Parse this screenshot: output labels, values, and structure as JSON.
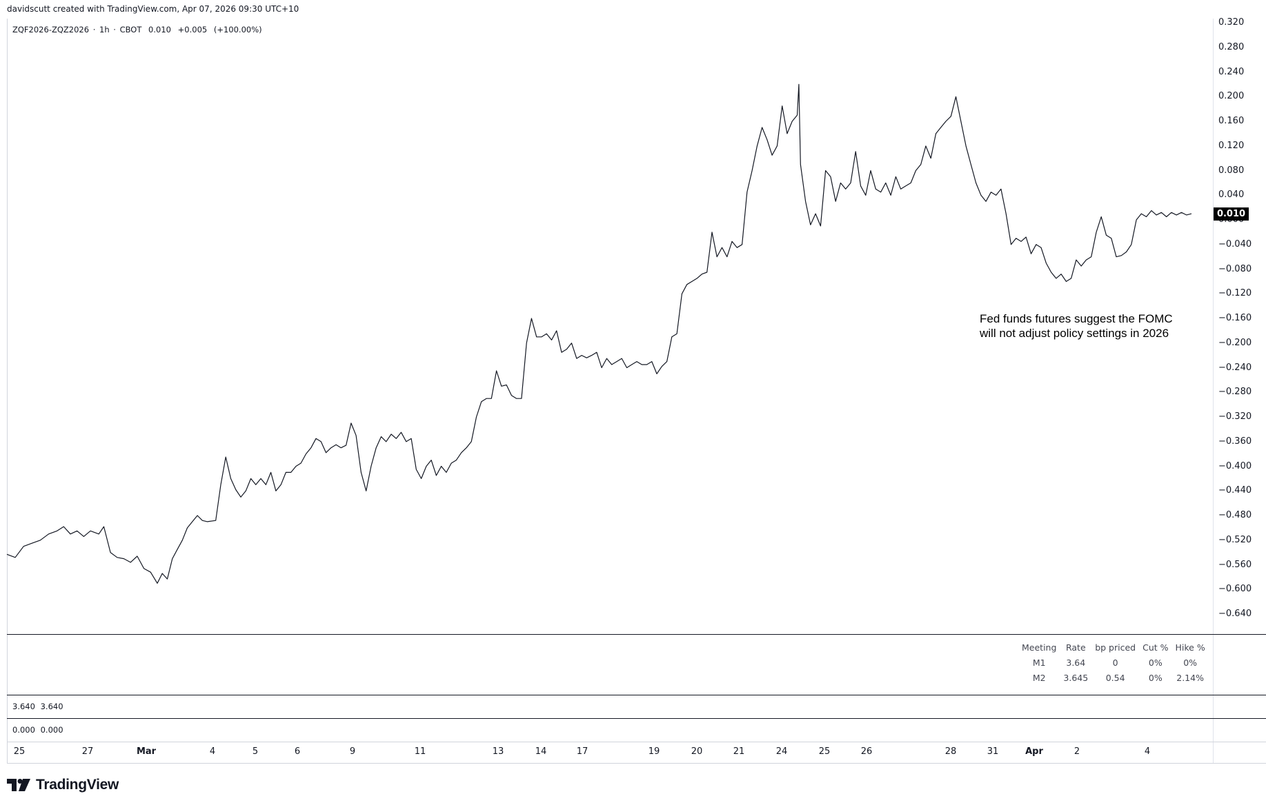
{
  "header": {
    "created_by": "davidscutt created with TradingView.com, Apr 07, 2026 09:30 UTC+10"
  },
  "legend": {
    "symbol": "ZQF2026-ZQZ2026",
    "interval": "1h",
    "exchange": "CBOT",
    "last": "0.010",
    "change": "+0.005",
    "change_pct": "(+100.00%)"
  },
  "price_tag": "0.010",
  "annotation": {
    "line1": "Fed funds futures suggest the FOMC",
    "line2": "will not adjust policy settings in 2026"
  },
  "fomc_table": {
    "headers": [
      "Meeting",
      "Rate",
      "bp priced",
      "Cut %",
      "Hike %"
    ],
    "rows": [
      [
        "M1",
        "3.64",
        "0",
        "0%",
        "0%"
      ],
      [
        "M2",
        "3.645",
        "0.54",
        "0%",
        "2.14%"
      ]
    ]
  },
  "panes": {
    "pane2": {
      "v1": "3.640",
      "v2": "3.640"
    },
    "pane3": {
      "v1": "0.000",
      "v2": "0.000"
    }
  },
  "brand": {
    "name": "TradingView"
  },
  "colors": {
    "line": "#131722",
    "price_tag_bg": "#000000"
  },
  "chart_data": {
    "type": "line",
    "title": "",
    "xlabel": "",
    "ylabel": "",
    "ylim": [
      -0.66,
      0.33
    ],
    "y_ticks": [
      "0.320",
      "0.280",
      "0.240",
      "0.200",
      "0.160",
      "0.120",
      "0.080",
      "0.040",
      "0.000",
      "−0.040",
      "−0.080",
      "−0.120",
      "−0.160",
      "−0.200",
      "−0.240",
      "−0.280",
      "−0.320",
      "−0.360",
      "−0.400",
      "−0.440",
      "−0.480",
      "−0.520",
      "−0.560",
      "−0.600",
      "−0.640"
    ],
    "x_ticks": [
      "25",
      "27",
      "Mar",
      "4",
      "5",
      "6",
      "9",
      "11",
      "13",
      "14",
      "17",
      "19",
      "20",
      "21",
      "24",
      "25",
      "26",
      "28",
      "31",
      "Apr",
      "2",
      "4"
    ],
    "x_ticks_bold": [
      "Mar",
      "Apr"
    ],
    "series": [
      {
        "points": [
          [
            0,
            -0.543
          ],
          [
            5,
            -0.548
          ],
          [
            10,
            -0.53
          ],
          [
            15,
            -0.525
          ],
          [
            20,
            -0.52
          ],
          [
            25,
            -0.51
          ],
          [
            30,
            -0.505
          ],
          [
            34,
            -0.498
          ],
          [
            38,
            -0.51
          ],
          [
            42,
            -0.505
          ],
          [
            46,
            -0.514
          ],
          [
            50,
            -0.505
          ],
          [
            55,
            -0.51
          ],
          [
            58,
            -0.498
          ],
          [
            62,
            -0.54
          ],
          [
            66,
            -0.548
          ],
          [
            70,
            -0.55
          ],
          [
            74,
            -0.556
          ],
          [
            78,
            -0.546
          ],
          [
            82,
            -0.566
          ],
          [
            86,
            -0.572
          ],
          [
            90,
            -0.59
          ],
          [
            93,
            -0.574
          ],
          [
            96,
            -0.583
          ],
          [
            99,
            -0.55
          ],
          [
            102,
            -0.535
          ],
          [
            105,
            -0.52
          ],
          [
            108,
            -0.5
          ],
          [
            111,
            -0.49
          ],
          [
            114,
            -0.48
          ],
          [
            117,
            -0.488
          ],
          [
            120,
            -0.49
          ],
          [
            125,
            -0.488
          ],
          [
            128,
            -0.43
          ],
          [
            131,
            -0.385
          ],
          [
            134,
            -0.42
          ],
          [
            137,
            -0.438
          ],
          [
            140,
            -0.45
          ],
          [
            143,
            -0.44
          ],
          [
            146,
            -0.42
          ],
          [
            149,
            -0.43
          ],
          [
            152,
            -0.42
          ],
          [
            155,
            -0.43
          ],
          [
            158,
            -0.41
          ],
          [
            161,
            -0.44
          ],
          [
            164,
            -0.43
          ],
          [
            167,
            -0.41
          ],
          [
            170,
            -0.41
          ],
          [
            173,
            -0.4
          ],
          [
            176,
            -0.395
          ],
          [
            179,
            -0.38
          ],
          [
            182,
            -0.37
          ],
          [
            185,
            -0.355
          ],
          [
            188,
            -0.36
          ],
          [
            191,
            -0.378
          ],
          [
            194,
            -0.37
          ],
          [
            197,
            -0.365
          ],
          [
            200,
            -0.37
          ],
          [
            203,
            -0.366
          ],
          [
            206,
            -0.33
          ],
          [
            209,
            -0.35
          ],
          [
            212,
            -0.41
          ],
          [
            215,
            -0.44
          ],
          [
            218,
            -0.4
          ],
          [
            221,
            -0.37
          ],
          [
            224,
            -0.352
          ],
          [
            227,
            -0.36
          ],
          [
            230,
            -0.348
          ],
          [
            233,
            -0.355
          ],
          [
            236,
            -0.345
          ],
          [
            239,
            -0.36
          ],
          [
            242,
            -0.355
          ],
          [
            245,
            -0.405
          ],
          [
            248,
            -0.42
          ],
          [
            251,
            -0.4
          ],
          [
            254,
            -0.39
          ],
          [
            257,
            -0.415
          ],
          [
            260,
            -0.4
          ],
          [
            263,
            -0.41
          ],
          [
            266,
            -0.395
          ],
          [
            269,
            -0.39
          ],
          [
            272,
            -0.378
          ],
          [
            275,
            -0.37
          ],
          [
            278,
            -0.36
          ],
          [
            281,
            -0.32
          ],
          [
            284,
            -0.295
          ],
          [
            287,
            -0.29
          ],
          [
            290,
            -0.29
          ],
          [
            293,
            -0.245
          ],
          [
            296,
            -0.27
          ],
          [
            299,
            -0.268
          ],
          [
            302,
            -0.285
          ],
          [
            305,
            -0.29
          ],
          [
            308,
            -0.29
          ],
          [
            311,
            -0.2
          ],
          [
            314,
            -0.16
          ],
          [
            317,
            -0.19
          ],
          [
            320,
            -0.19
          ],
          [
            323,
            -0.185
          ],
          [
            326,
            -0.195
          ],
          [
            329,
            -0.18
          ],
          [
            332,
            -0.215
          ],
          [
            335,
            -0.21
          ],
          [
            338,
            -0.2
          ],
          [
            341,
            -0.225
          ],
          [
            344,
            -0.22
          ],
          [
            347,
            -0.224
          ],
          [
            350,
            -0.22
          ],
          [
            353,
            -0.215
          ],
          [
            356,
            -0.24
          ],
          [
            359,
            -0.225
          ],
          [
            362,
            -0.235
          ],
          [
            365,
            -0.23
          ],
          [
            368,
            -0.225
          ],
          [
            371,
            -0.24
          ],
          [
            374,
            -0.235
          ],
          [
            377,
            -0.23
          ],
          [
            380,
            -0.235
          ],
          [
            383,
            -0.235
          ],
          [
            386,
            -0.23
          ],
          [
            389,
            -0.25
          ],
          [
            392,
            -0.238
          ],
          [
            395,
            -0.23
          ],
          [
            398,
            -0.19
          ],
          [
            401,
            -0.185
          ],
          [
            404,
            -0.12
          ],
          [
            407,
            -0.105
          ],
          [
            410,
            -0.1
          ],
          [
            413,
            -0.095
          ],
          [
            416,
            -0.088
          ],
          [
            419,
            -0.085
          ],
          [
            422,
            -0.02
          ],
          [
            425,
            -0.06
          ],
          [
            428,
            -0.045
          ],
          [
            431,
            -0.06
          ],
          [
            434,
            -0.035
          ],
          [
            437,
            -0.045
          ],
          [
            440,
            -0.04
          ],
          [
            443,
            0.045
          ],
          [
            446,
            0.08
          ],
          [
            449,
            0.12
          ],
          [
            452,
            0.15
          ],
          [
            455,
            0.13
          ],
          [
            458,
            0.105
          ],
          [
            461,
            0.12
          ],
          [
            464,
            0.185
          ],
          [
            467,
            0.14
          ],
          [
            470,
            0.16
          ],
          [
            473,
            0.17
          ],
          [
            474,
            0.22
          ],
          [
            475,
            0.09
          ],
          [
            478,
            0.03
          ],
          [
            481,
            -0.008
          ],
          [
            484,
            0.01
          ],
          [
            487,
            -0.01
          ],
          [
            490,
            0.08
          ],
          [
            493,
            0.07
          ],
          [
            496,
            0.03
          ],
          [
            499,
            0.06
          ],
          [
            502,
            0.05
          ],
          [
            505,
            0.06
          ],
          [
            508,
            0.111
          ],
          [
            511,
            0.055
          ],
          [
            514,
            0.04
          ],
          [
            517,
            0.08
          ],
          [
            520,
            0.05
          ],
          [
            523,
            0.045
          ],
          [
            526,
            0.06
          ],
          [
            529,
            0.04
          ],
          [
            532,
            0.07
          ],
          [
            535,
            0.05
          ],
          [
            538,
            0.055
          ],
          [
            541,
            0.06
          ],
          [
            544,
            0.08
          ],
          [
            547,
            0.09
          ],
          [
            550,
            0.12
          ],
          [
            553,
            0.1
          ],
          [
            556,
            0.14
          ],
          [
            559,
            0.15
          ],
          [
            562,
            0.16
          ],
          [
            565,
            0.168
          ],
          [
            568,
            0.2
          ],
          [
            571,
            0.16
          ],
          [
            574,
            0.12
          ],
          [
            577,
            0.09
          ],
          [
            580,
            0.06
          ],
          [
            583,
            0.04
          ],
          [
            586,
            0.03
          ],
          [
            589,
            0.045
          ],
          [
            592,
            0.04
          ],
          [
            595,
            0.05
          ],
          [
            598,
            0.01
          ],
          [
            601,
            -0.04
          ],
          [
            604,
            -0.03
          ],
          [
            607,
            -0.035
          ],
          [
            610,
            -0.028
          ],
          [
            613,
            -0.055
          ],
          [
            616,
            -0.04
          ],
          [
            619,
            -0.045
          ],
          [
            622,
            -0.07
          ],
          [
            625,
            -0.085
          ],
          [
            628,
            -0.095
          ],
          [
            631,
            -0.088
          ],
          [
            634,
            -0.1
          ],
          [
            637,
            -0.095
          ],
          [
            640,
            -0.065
          ],
          [
            643,
            -0.075
          ],
          [
            646,
            -0.065
          ],
          [
            649,
            -0.06
          ],
          [
            652,
            -0.02
          ],
          [
            655,
            0.005
          ],
          [
            658,
            -0.025
          ],
          [
            661,
            -0.03
          ],
          [
            664,
            -0.06
          ],
          [
            667,
            -0.058
          ],
          [
            670,
            -0.052
          ],
          [
            673,
            -0.04
          ],
          [
            676,
            0.0
          ],
          [
            679,
            0.01
          ],
          [
            682,
            0.005
          ],
          [
            685,
            0.015
          ],
          [
            688,
            0.008
          ],
          [
            691,
            0.012
          ],
          [
            694,
            0.005
          ],
          [
            697,
            0.012
          ],
          [
            700,
            0.008
          ],
          [
            703,
            0.012
          ],
          [
            706,
            0.008
          ],
          [
            709,
            0.01
          ]
        ]
      }
    ]
  }
}
